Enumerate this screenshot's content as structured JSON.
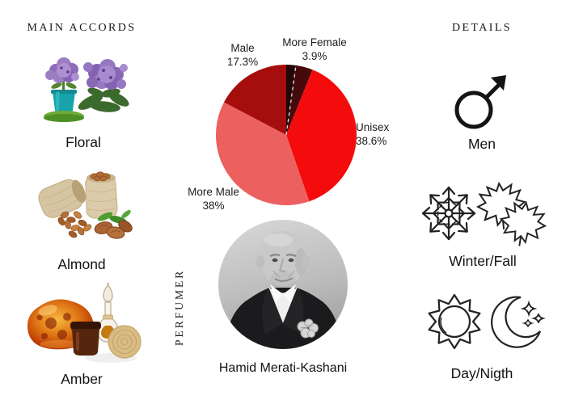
{
  "page": {
    "background": "#ffffff"
  },
  "accords": {
    "header": "MAIN ACCORDS",
    "items": [
      {
        "name": "Floral",
        "image": "purple-heliotrope-flowers-photo"
      },
      {
        "name": "Almond",
        "image": "almond-burlap-sacks-photo"
      },
      {
        "name": "Amber",
        "image": "amber-stone-jar-and-bottle-photo"
      }
    ]
  },
  "chart_data": {
    "type": "pie",
    "title": "",
    "legend_position": "none",
    "start_angle_deg_from_top": 0,
    "direction": "clockwise",
    "slices": [
      {
        "label": "",
        "pct": 2.2,
        "pct_label": "",
        "color": "#230607"
      },
      {
        "label": "More Female",
        "pct": 3.9,
        "pct_label": "3.9%",
        "color": "#470a0c",
        "divider_before": true
      },
      {
        "label": "Unisex",
        "pct": 38.6,
        "pct_label": "38.6%",
        "color": "#f40b0b"
      },
      {
        "label": "More Male",
        "pct": 38.0,
        "pct_label": "38%",
        "color": "#ec6060"
      },
      {
        "label": "Male",
        "pct": 17.3,
        "pct_label": "17.3%",
        "color": "#a60d0d"
      }
    ]
  },
  "perfumer": {
    "section_label": "PERFUMER",
    "name": "Hamid Merati-Kashani",
    "photo": "black-and-white-portrait-photo"
  },
  "details": {
    "header": "DETAILS",
    "items": [
      {
        "label": "Men",
        "icons": [
          "male-symbol-icon"
        ]
      },
      {
        "label": "Winter/Fall",
        "icons": [
          "snowflake-icon",
          "maple-leaves-icon"
        ]
      },
      {
        "label": "Day/Nigth",
        "icons": [
          "sun-icon",
          "crescent-moon-stars-icon"
        ]
      }
    ]
  }
}
